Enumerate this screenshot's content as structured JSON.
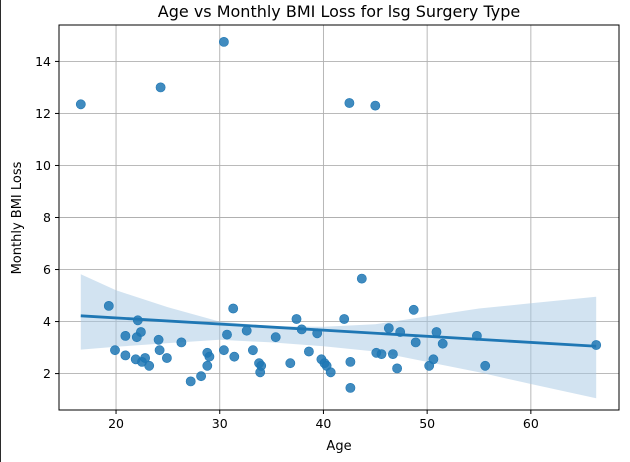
{
  "chart_data": {
    "type": "scatter",
    "title": "Age vs Monthly BMI Loss for lsg Surgery Type",
    "xlabel": "Age",
    "ylabel": "Monthly BMI Loss",
    "xlim": [
      14.5,
      68.5
    ],
    "ylim": [
      0.6,
      15.4
    ],
    "xticks": [
      20,
      30,
      40,
      50,
      60
    ],
    "yticks": [
      2,
      4,
      6,
      8,
      10,
      12,
      14
    ],
    "grid": true,
    "colors": {
      "points": "#1f77b4",
      "line": "#1f77b4",
      "band": "#a6c8e4"
    },
    "points": [
      [
        16.6,
        12.35
      ],
      [
        19.3,
        4.6
      ],
      [
        19.9,
        2.9
      ],
      [
        20.9,
        3.45
      ],
      [
        20.9,
        2.7
      ],
      [
        21.9,
        2.55
      ],
      [
        22.1,
        4.05
      ],
      [
        22.0,
        3.4
      ],
      [
        22.4,
        3.6
      ],
      [
        22.5,
        2.45
      ],
      [
        22.8,
        2.6
      ],
      [
        23.2,
        2.3
      ],
      [
        24.1,
        3.3
      ],
      [
        24.2,
        2.9
      ],
      [
        24.3,
        13.0
      ],
      [
        24.9,
        2.6
      ],
      [
        26.3,
        3.2
      ],
      [
        27.2,
        1.7
      ],
      [
        28.2,
        1.9
      ],
      [
        28.8,
        2.8
      ],
      [
        28.8,
        2.3
      ],
      [
        29.0,
        2.65
      ],
      [
        30.4,
        14.75
      ],
      [
        30.4,
        2.9
      ],
      [
        30.7,
        3.5
      ],
      [
        31.3,
        4.5
      ],
      [
        31.4,
        2.65
      ],
      [
        32.6,
        3.65
      ],
      [
        33.2,
        2.9
      ],
      [
        33.8,
        2.4
      ],
      [
        33.9,
        2.05
      ],
      [
        34.0,
        2.3
      ],
      [
        35.4,
        3.4
      ],
      [
        36.8,
        2.4
      ],
      [
        37.4,
        4.1
      ],
      [
        37.9,
        3.7
      ],
      [
        38.6,
        2.85
      ],
      [
        39.4,
        3.55
      ],
      [
        39.8,
        2.55
      ],
      [
        40.1,
        2.4
      ],
      [
        40.3,
        2.3
      ],
      [
        40.7,
        2.05
      ],
      [
        42.0,
        4.1
      ],
      [
        42.5,
        12.4
      ],
      [
        42.6,
        2.45
      ],
      [
        42.6,
        1.45
      ],
      [
        43.7,
        5.65
      ],
      [
        45.0,
        12.3
      ],
      [
        45.1,
        2.8
      ],
      [
        45.6,
        2.75
      ],
      [
        46.3,
        3.75
      ],
      [
        46.7,
        2.75
      ],
      [
        47.1,
        2.2
      ],
      [
        47.4,
        3.6
      ],
      [
        48.7,
        4.45
      ],
      [
        48.9,
        3.2
      ],
      [
        50.2,
        2.3
      ],
      [
        50.6,
        2.55
      ],
      [
        50.9,
        3.6
      ],
      [
        51.5,
        3.15
      ],
      [
        54.8,
        3.45
      ],
      [
        55.6,
        2.3
      ],
      [
        66.3,
        3.1
      ]
    ],
    "regression": {
      "x": [
        16.6,
        66.3
      ],
      "y": [
        4.22,
        3.05
      ]
    },
    "confidence_band": {
      "x": [
        16.6,
        20,
        25,
        30,
        35,
        40,
        45,
        50,
        55,
        60,
        66.3
      ],
      "upper": [
        5.82,
        5.2,
        4.55,
        4.0,
        3.82,
        3.8,
        3.9,
        4.2,
        4.5,
        4.7,
        4.95
      ],
      "lower": [
        2.92,
        3.03,
        3.17,
        3.3,
        3.2,
        3.05,
        2.85,
        2.45,
        2.05,
        1.6,
        1.05
      ]
    }
  }
}
